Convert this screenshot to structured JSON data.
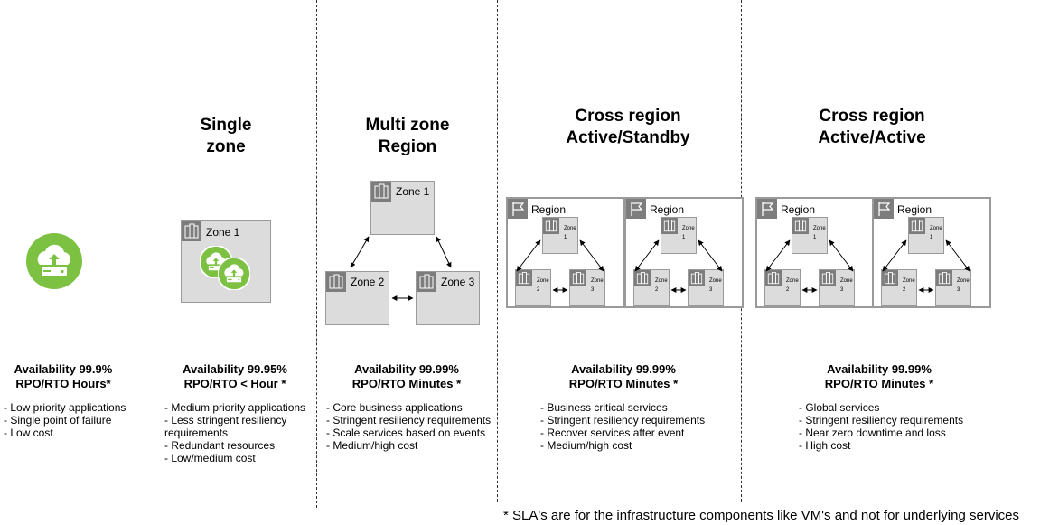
{
  "columns": [
    {
      "title_lines": [],
      "icon": "cloud-upload-icon",
      "availability": "Availability 99.9%",
      "rpo_rto": "RPO/RTO Hours*",
      "bullets": [
        "- Low priority applications",
        "- Single point of failure",
        "- Low cost"
      ]
    },
    {
      "title_lines": [
        "Single",
        "zone"
      ],
      "zones": [
        "Zone 1"
      ],
      "availability": "Availability 99.95%",
      "rpo_rto": "RPO/RTO < Hour *",
      "bullets": [
        "- Medium priority applications",
        "- Less stringent resiliency",
        "requirements",
        "- Redundant resources",
        "- Low/medium cost"
      ]
    },
    {
      "title_lines": [
        "Multi zone",
        "Region"
      ],
      "zones": [
        "Zone 1",
        "Zone 2",
        "Zone 3"
      ],
      "availability": "Availability 99.99%",
      "rpo_rto": "RPO/RTO Minutes *",
      "bullets": [
        "- Core business applications",
        "- Stringent resiliency requirements",
        "- Scale services based on events",
        "- Medium/high cost"
      ]
    },
    {
      "title_lines": [
        "Cross region",
        "Active/Standby"
      ],
      "region_label": "Region",
      "availability": "Availability 99.99%",
      "rpo_rto": "RPO/RTO Minutes *",
      "bullets": [
        "- Business critical services",
        "- Stringent resiliency requirements",
        "- Recover services after event",
        "- Medium/high cost"
      ]
    },
    {
      "title_lines": [
        "Cross region",
        "Active/Active"
      ],
      "region_label": "Region",
      "availability": "Availability 99.99%",
      "rpo_rto": "RPO/RTO Minutes *",
      "bullets": [
        "- Global services",
        "- Stringent resiliency requirements",
        "- Near zero downtime and loss",
        "- High cost"
      ]
    }
  ],
  "mini_zone": {
    "word": "Zone",
    "numbers": [
      "1",
      "2",
      "3"
    ]
  },
  "footnote": "* SLA's are for the infrastructure components like VM's and not for underlying services",
  "colors": {
    "accent_green": "#7cc142",
    "zone_fill": "#dcdcdc",
    "icon_gray": "#7d7d7d"
  }
}
